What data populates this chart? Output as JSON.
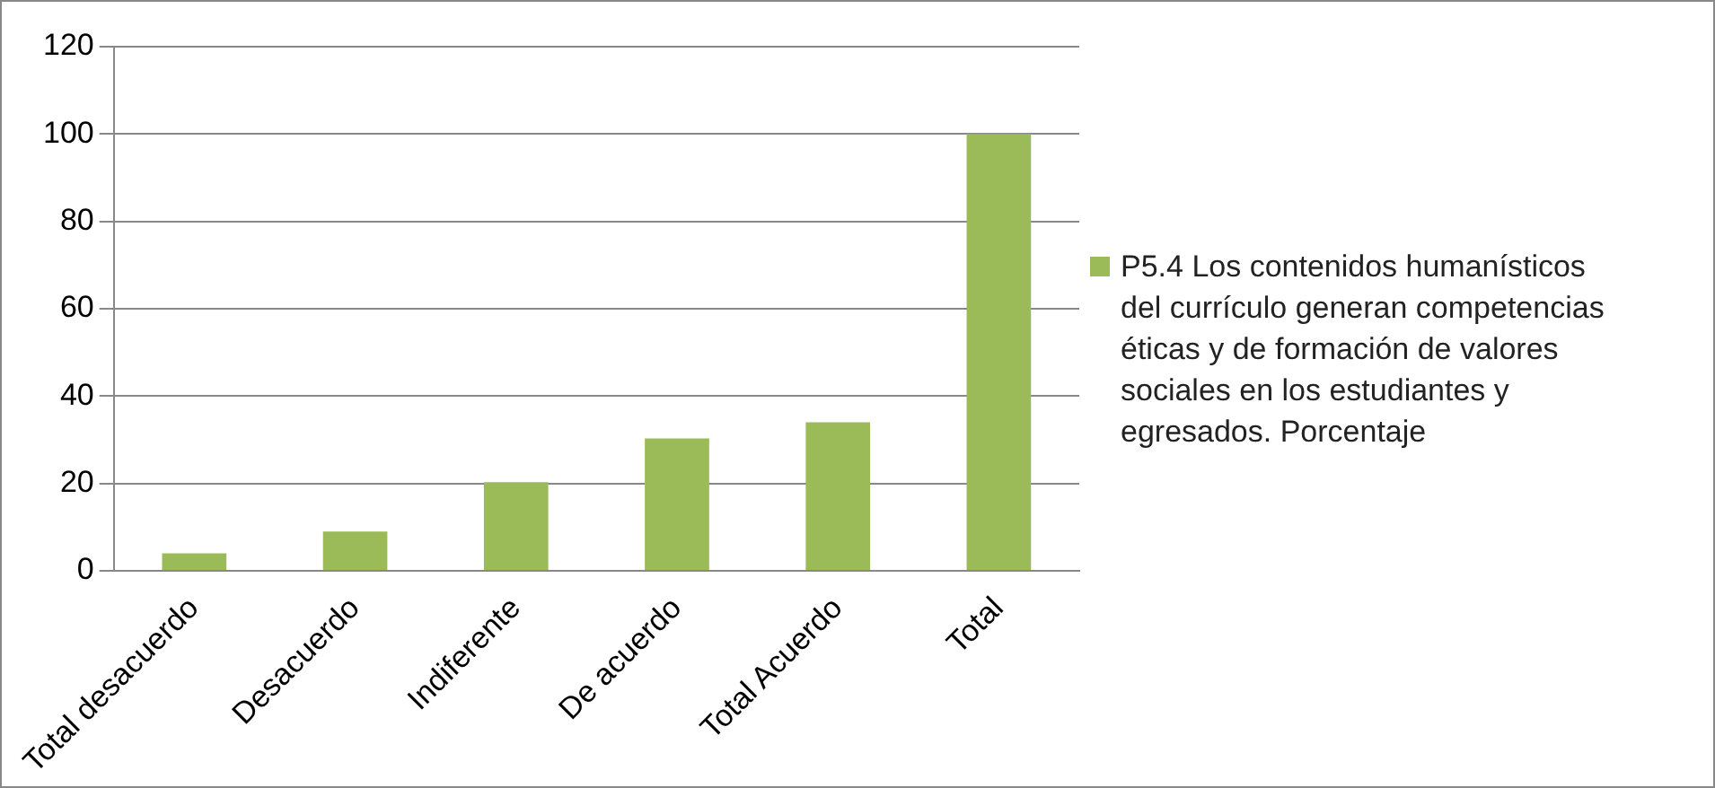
{
  "chart_data": {
    "type": "bar",
    "categories": [
      "Total desacuerdo",
      "Desacuerdo",
      "Indiferente",
      "De acuerdo",
      "Total Acuerdo",
      "Total"
    ],
    "series": [
      {
        "name": "P5.4 Los contenidos humanísticos del currículo generan competencias éticas y de formación de valores sociales en los estudiantes y egresados. Porcentaje",
        "color": "#9bbb59",
        "values": [
          4,
          9,
          20.3,
          30.3,
          34,
          100
        ]
      }
    ],
    "ylim": [
      0,
      120
    ],
    "yticks": [
      0,
      20,
      40,
      60,
      80,
      100,
      120
    ],
    "grid": "y",
    "legend": "right"
  }
}
